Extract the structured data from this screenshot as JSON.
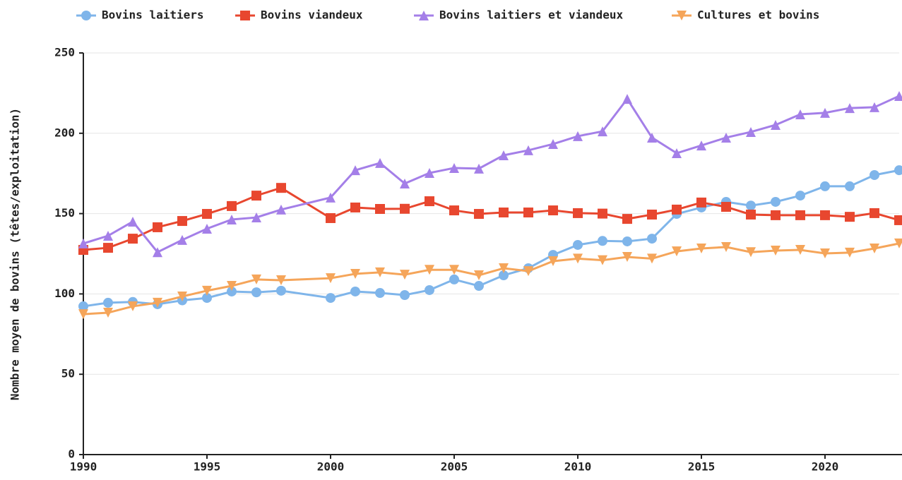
{
  "chart_data": {
    "type": "line",
    "y_label": "Nombre moyen de bovins (têtes/exploitation)",
    "x": [
      1990,
      1991,
      1992,
      1993,
      1994,
      1995,
      1996,
      1997,
      1998,
      2000,
      2001,
      2002,
      2003,
      2004,
      2005,
      2006,
      2007,
      2008,
      2009,
      2010,
      2011,
      2012,
      2013,
      2014,
      2015,
      2016,
      2017,
      2018,
      2019,
      2020,
      2021,
      2022,
      2023
    ],
    "series": [
      {
        "name": "Bovins laitiers",
        "color": "#7fb5ea",
        "marker": "circle",
        "values": [
          92.3,
          94.5,
          95,
          93.6,
          96,
          97.5,
          101.5,
          101,
          102,
          97.5,
          101.5,
          100.6,
          99.3,
          102.4,
          109,
          105,
          111.6,
          116,
          124.3,
          130.5,
          133,
          132.7,
          134.4,
          149.8,
          153.8,
          157.3,
          155,
          157.3,
          161.2,
          167,
          167,
          174,
          177
        ]
      },
      {
        "name": "Bovins viandeux",
        "color": "#e8472f",
        "marker": "square",
        "values": [
          127.4,
          128.7,
          134.4,
          141.5,
          145.4,
          149.8,
          154.7,
          161.2,
          166,
          147.2,
          153.8,
          152.9,
          153,
          157.7,
          152,
          149.8,
          150.7,
          150.7,
          152,
          150.3,
          150,
          146.7,
          149.4,
          152.5,
          156.9,
          154.2,
          149.4,
          149,
          149,
          149,
          148,
          150.3,
          145.9
        ]
      },
      {
        "name": "Bovins laitiers et viandeux",
        "color": "#a47fe8",
        "marker": "triangle-up",
        "values": [
          131.4,
          136.2,
          145,
          126,
          133.6,
          140.6,
          146.3,
          147.6,
          152.5,
          160,
          177,
          181.5,
          168.7,
          175.3,
          178.4,
          178,
          186.3,
          189.4,
          193.3,
          198.2,
          201.2,
          221.4,
          197.3,
          187.6,
          192.4,
          197.3,
          200.8,
          205.2,
          211.8,
          212.7,
          215.7,
          216.2,
          223.2
        ]
      },
      {
        "name": "Cultures et bovins",
        "color": "#f5a55a",
        "marker": "triangle-down",
        "values": [
          87.4,
          88.3,
          92.3,
          94.5,
          98.4,
          102,
          105,
          109,
          108.5,
          109.8,
          112.5,
          113.4,
          112,
          115,
          115,
          111.6,
          116,
          114.2,
          120.4,
          122,
          121,
          123,
          122,
          126.5,
          128.3,
          129.2,
          126,
          127,
          127.4,
          125.2,
          125.7,
          128.3,
          131.4
        ]
      }
    ],
    "xlim": [
      1990,
      2023
    ],
    "xticks": [
      1990,
      1995,
      2000,
      2005,
      2010,
      2015,
      2020
    ],
    "ylim": [
      0,
      250
    ],
    "yticks": [
      0,
      50,
      100,
      150,
      200,
      250
    ],
    "grid": true,
    "legend": "top"
  }
}
